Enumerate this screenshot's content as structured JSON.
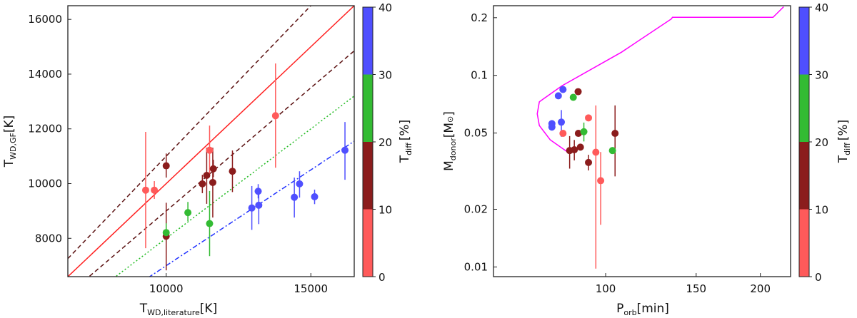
{
  "colors": {
    "0-10": "#ff5a5a",
    "10-20": "#8b1c1c",
    "20-30": "#33bb33",
    "30-40": "#4f4fff",
    "track": "#ff00ff"
  },
  "chart_data": [
    {
      "type": "scatter",
      "xlabel": {
        "main": "T",
        "sub": "WD,literature",
        "unit": "[K]"
      },
      "ylabel": {
        "main": "T",
        "sub": "WD,GF",
        "unit": "[K]"
      },
      "xlim": [
        6600,
        16500
      ],
      "ylim": [
        6600,
        16500
      ],
      "xticks": [
        "10000",
        "15000"
      ],
      "yticks": [
        "8000",
        "10000",
        "12000",
        "14000",
        "16000"
      ],
      "grid": false,
      "lines": [
        {
          "slope": 1.1,
          "style": "dashed",
          "color": "#5a1010"
        },
        {
          "slope": 1.0,
          "style": "solid",
          "color": "#ff2020"
        },
        {
          "slope": 0.9,
          "style": "dashed",
          "color": "#5a1010"
        },
        {
          "slope": 0.8,
          "style": "dotted",
          "color": "#22bb22"
        },
        {
          "slope": 0.7,
          "style": "dashdot",
          "color": "#2233ff"
        }
      ],
      "points": [
        {
          "x": 9290,
          "y": 9760,
          "ylo": 7640,
          "yhi": 11890,
          "tdiff": "0-10"
        },
        {
          "x": 9590,
          "y": 9760,
          "ylo": 9440,
          "yhi": 10090,
          "tdiff": "0-10"
        },
        {
          "x": 10000,
          "y": 10650,
          "ylo": 10220,
          "yhi": 11100,
          "tdiff": "10-20"
        },
        {
          "x": 10000,
          "y": 8080,
          "ylo": 6830,
          "yhi": 9300,
          "tdiff": "10-20"
        },
        {
          "x": 10000,
          "y": 8210,
          "ylo": 8030,
          "yhi": 8550,
          "tdiff": "20-30"
        },
        {
          "x": 10750,
          "y": 8940,
          "ylo": 8630,
          "yhi": 9330,
          "tdiff": "20-30"
        },
        {
          "x": 11500,
          "y": 11220,
          "ylo": 10270,
          "yhi": 12120,
          "tdiff": "0-10"
        },
        {
          "x": 11500,
          "y": 8540,
          "ylo": 7350,
          "yhi": 9730,
          "tdiff": "20-30"
        },
        {
          "x": 11250,
          "y": 9990,
          "ylo": 9650,
          "yhi": 10320,
          "tdiff": "10-20"
        },
        {
          "x": 11400,
          "y": 10300,
          "ylo": 9260,
          "yhi": 11310,
          "tdiff": "10-20"
        },
        {
          "x": 11630,
          "y": 10540,
          "ylo": 10240,
          "yhi": 10870,
          "tdiff": "10-20"
        },
        {
          "x": 11610,
          "y": 10040,
          "ylo": 8760,
          "yhi": 11310,
          "tdiff": "10-20"
        },
        {
          "x": 12290,
          "y": 10450,
          "ylo": 9690,
          "yhi": 11210,
          "tdiff": "10-20"
        },
        {
          "x": 13780,
          "y": 12480,
          "ylo": 10580,
          "yhi": 14390,
          "tdiff": "0-10"
        },
        {
          "x": 12960,
          "y": 9110,
          "ylo": 8310,
          "yhi": 9910,
          "tdiff": "30-40"
        },
        {
          "x": 13180,
          "y": 9720,
          "ylo": 9460,
          "yhi": 9980,
          "tdiff": "30-40"
        },
        {
          "x": 13200,
          "y": 9210,
          "ylo": 8520,
          "yhi": 9750,
          "tdiff": "30-40"
        },
        {
          "x": 14430,
          "y": 9500,
          "ylo": 8760,
          "yhi": 10220,
          "tdiff": "30-40"
        },
        {
          "x": 14610,
          "y": 9990,
          "ylo": 9490,
          "yhi": 10450,
          "tdiff": "30-40"
        },
        {
          "x": 15130,
          "y": 9520,
          "ylo": 9250,
          "yhi": 9780,
          "tdiff": "30-40"
        },
        {
          "x": 16180,
          "y": 11220,
          "ylo": 10140,
          "yhi": 12250,
          "tdiff": "30-40"
        }
      ],
      "colorbar": {
        "ticks": [
          "0",
          "10",
          "20",
          "30",
          "40"
        ],
        "label": {
          "main": "T",
          "sub": "diff",
          "unit": "[%]"
        }
      }
    },
    {
      "type": "scatter",
      "xscale": "log",
      "yscale": "log",
      "xlabel": {
        "main": "P",
        "sub": "orb",
        "unit": "[min]"
      },
      "ylabel": {
        "main": "M",
        "sub": "donor",
        "unit": "[M",
        "unit_symbol": "⊙",
        "unit_end": "]"
      },
      "xlim": [
        60.5,
        229
      ],
      "ylim": [
        0.0089,
        0.231
      ],
      "xticks": [
        "100",
        "150",
        "200"
      ],
      "yticks": [
        "0.01",
        "0.02",
        "0.05",
        "0.1",
        "0.2"
      ],
      "grid": false,
      "track": [
        [
          222,
          0.228
        ],
        [
          211.7,
          0.201
        ],
        [
          134.9,
          0.201
        ],
        [
          134.2,
          0.197
        ],
        [
          107.3,
          0.132
        ],
        [
          82.2,
          0.0882
        ],
        [
          74.3,
          0.0728
        ],
        [
          73.6,
          0.063
        ],
        [
          74.3,
          0.0547
        ],
        [
          78,
          0.0461
        ],
        [
          84,
          0.0401
        ]
      ],
      "points": [
        {
          "x": 82.6,
          "y": 0.0844,
          "tdiff": "30-40"
        },
        {
          "x": 80.9,
          "y": 0.0782,
          "tdiff": "30-40"
        },
        {
          "x": 88.4,
          "y": 0.0822,
          "tdiff": "10-20"
        },
        {
          "x": 86.5,
          "y": 0.0768,
          "tdiff": "20-30"
        },
        {
          "x": 78.6,
          "y": 0.056,
          "tdiff": "30-40"
        },
        {
          "x": 78.6,
          "y": 0.0537,
          "tdiff": "30-40"
        },
        {
          "x": 82.0,
          "y": 0.057,
          "ylo": 0.0478,
          "yhi": 0.0659,
          "tdiff": "30-40"
        },
        {
          "x": 92.6,
          "y": 0.06,
          "tdiff": "0-10"
        },
        {
          "x": 82.6,
          "y": 0.0498,
          "tdiff": "0-10"
        },
        {
          "x": 88.5,
          "y": 0.0498,
          "tdiff": "10-20"
        },
        {
          "x": 90.7,
          "y": 0.0508,
          "ylo": 0.0452,
          "yhi": 0.0567,
          "tdiff": "20-30"
        },
        {
          "x": 104.3,
          "y": 0.0498,
          "ylo": 0.0297,
          "yhi": 0.0697,
          "tdiff": "10-20"
        },
        {
          "x": 85.1,
          "y": 0.0405,
          "ylo": 0.0326,
          "yhi": 0.0482,
          "tdiff": "10-20"
        },
        {
          "x": 86.9,
          "y": 0.0409,
          "ylo": 0.036,
          "yhi": 0.046,
          "tdiff": "10-20"
        },
        {
          "x": 89.3,
          "y": 0.0422,
          "tdiff": "10-20"
        },
        {
          "x": 95.7,
          "y": 0.0397,
          "ylo": 0.0098,
          "yhi": 0.0697,
          "tdiff": "0-10"
        },
        {
          "x": 103.1,
          "y": 0.0405,
          "tdiff": "20-30"
        },
        {
          "x": 92.6,
          "y": 0.0351,
          "ylo": 0.0319,
          "yhi": 0.0385,
          "tdiff": "10-20"
        },
        {
          "x": 97.8,
          "y": 0.0282,
          "ylo": 0.0166,
          "yhi": 0.0398,
          "tdiff": "0-10"
        }
      ],
      "colorbar": {
        "ticks": [
          "0",
          "10",
          "20",
          "30",
          "40"
        ],
        "label": {
          "main": "T",
          "sub": "diff",
          "unit": "[%]"
        }
      }
    }
  ]
}
